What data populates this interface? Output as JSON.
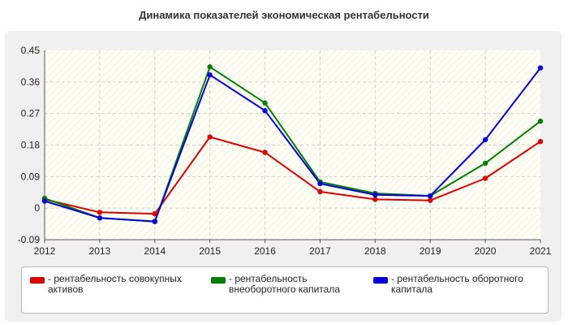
{
  "title": "Динамика показателей экономическая рентабельности",
  "chart_data": {
    "type": "line",
    "x": [
      "2012",
      "2013",
      "2014",
      "2015",
      "2016",
      "2017",
      "2018",
      "2019",
      "2020",
      "2021"
    ],
    "ylim": [
      -0.09,
      0.45
    ],
    "yticks": [
      "-0.09",
      "0",
      "0.09",
      "0.18",
      "0.27",
      "0.36",
      "0.45"
    ],
    "grid": true,
    "legend_position": "bottom",
    "series": [
      {
        "name": "- рентабельность совокупных активов",
        "color": "#e00000",
        "values": [
          0.025,
          -0.012,
          -0.016,
          0.203,
          0.159,
          0.047,
          0.025,
          0.022,
          0.085,
          0.19
        ]
      },
      {
        "name": "- рентабельность внеоборотного капитала",
        "color": "#008000",
        "values": [
          0.028,
          -0.028,
          -0.038,
          0.403,
          0.3,
          0.075,
          0.042,
          0.035,
          0.128,
          0.248
        ]
      },
      {
        "name": "- рентабельность оборотного капитала",
        "color": "#0000e0",
        "values": [
          0.02,
          -0.028,
          -0.038,
          0.38,
          0.278,
          0.07,
          0.038,
          0.035,
          0.195,
          0.4
        ]
      }
    ]
  },
  "legend": {
    "item1_line1": "- рентабельность совокупных",
    "item1_line2": "активов",
    "item2_line1": "- рентабельность",
    "item2_line2": "внеоборотного капитала",
    "item3_line1": "- рентабельность оборотного",
    "item3_line2": "капитала"
  }
}
